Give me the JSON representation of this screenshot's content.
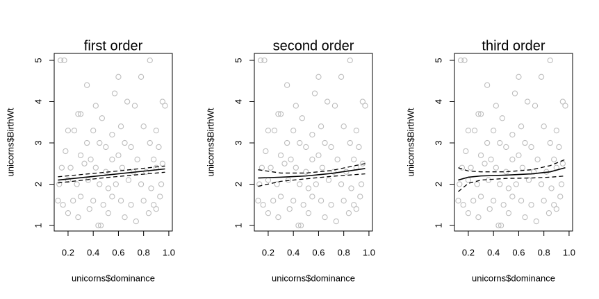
{
  "chart_data": [
    {
      "type": "scatter",
      "title": "first order",
      "x_label": "unicorns$dominance",
      "y_label": "unicorns$BirthWt",
      "xlim": [
        0.09,
        1.028
      ],
      "ylim": [
        0.866,
        5.168
      ],
      "xticks": [
        0.2,
        0.4,
        0.6,
        0.8,
        {
          "value": 1,
          "label": "1.0"
        }
      ],
      "yticks": [
        1,
        2,
        3,
        4,
        5
      ],
      "series": [
        {
          "mode": "markers",
          "color": "#bdbdbd",
          "x": [
            0.14,
            0.17,
            0.85,
            0.6,
            0.78,
            0.35,
            0.57,
            0.97,
            0.95,
            0.67,
            0.42,
            0.28,
            0.3,
            0.47,
            0.73,
            0.2,
            0.25,
            0.4,
            0.55,
            0.62,
            0.8,
            0.9,
            0.35,
            0.45,
            0.5,
            0.65,
            0.7,
            0.85,
            0.92,
            0.18,
            0.3,
            0.38,
            0.55,
            0.6,
            0.75,
            0.88,
            0.95,
            0.15,
            0.22,
            0.33,
            0.42,
            0.5,
            0.63,
            0.72,
            0.82,
            0.9,
            0.13,
            0.2,
            0.27,
            0.36,
            0.45,
            0.52,
            0.58,
            0.68,
            0.78,
            0.86,
            0.94,
            0.12,
            0.16,
            0.24,
            0.3,
            0.4,
            0.48,
            0.55,
            0.62,
            0.7,
            0.8,
            0.88,
            0.93,
            0.2,
            0.28,
            0.37,
            0.44,
            0.46,
            0.52,
            0.65,
            0.74,
            0.84,
            0.9
          ],
          "values": [
            5,
            5,
            5,
            4.6,
            4.6,
            4.4,
            4.2,
            3.9,
            4,
            4,
            3.9,
            3.7,
            3.7,
            3.6,
            3.9,
            3.3,
            3.3,
            3.3,
            3.2,
            3.4,
            3.4,
            3.3,
            3,
            3,
            2.9,
            3,
            2.9,
            3,
            2.9,
            2.8,
            2.7,
            2.6,
            2.6,
            2.7,
            2.6,
            2.6,
            2.5,
            2.4,
            2.4,
            2.5,
            2.4,
            2.3,
            2.4,
            2.3,
            2.3,
            2.4,
            2,
            2.1,
            2,
            2.1,
            2,
            1.9,
            2,
            2.1,
            2,
            1.9,
            2,
            1.6,
            1.5,
            1.6,
            1.7,
            1.6,
            1.5,
            1.7,
            1.6,
            1.5,
            1.6,
            1.5,
            1.7,
            1.3,
            1.2,
            1.4,
            1,
            1,
            1.3,
            1.2,
            1.1,
            1.3,
            1.4
          ]
        },
        {
          "mode": "line",
          "dash": false,
          "color": "#000000",
          "x": [
            0.12,
            0.5,
            0.97
          ],
          "values": [
            2.1,
            2.22,
            2.37
          ]
        },
        {
          "mode": "line",
          "dash": true,
          "color": "#000000",
          "x": [
            0.12,
            0.5,
            0.97
          ],
          "values": [
            2.03,
            2.16,
            2.29
          ]
        },
        {
          "mode": "line",
          "dash": true,
          "color": "#000000",
          "x": [
            0.12,
            0.5,
            0.97
          ],
          "values": [
            2.18,
            2.29,
            2.44
          ]
        }
      ]
    },
    {
      "type": "scatter",
      "title": "second order",
      "x_label": "unicorns$dominance",
      "y_label": "unicorns$BirthWt",
      "xlim": [
        0.09,
        1.028
      ],
      "ylim": [
        0.866,
        5.168
      ],
      "xticks": [
        0.2,
        0.4,
        0.6,
        0.8,
        {
          "value": 1,
          "label": "1.0"
        }
      ],
      "yticks": [
        1,
        2,
        3,
        4,
        5
      ],
      "series": [
        {
          "mode": "markers",
          "color": "#bdbdbd",
          "x": [
            0.14,
            0.17,
            0.85,
            0.6,
            0.78,
            0.35,
            0.57,
            0.97,
            0.95,
            0.67,
            0.42,
            0.28,
            0.3,
            0.47,
            0.73,
            0.2,
            0.25,
            0.4,
            0.55,
            0.62,
            0.8,
            0.9,
            0.35,
            0.45,
            0.5,
            0.65,
            0.7,
            0.85,
            0.92,
            0.18,
            0.3,
            0.38,
            0.55,
            0.6,
            0.75,
            0.88,
            0.95,
            0.15,
            0.22,
            0.33,
            0.42,
            0.5,
            0.63,
            0.72,
            0.82,
            0.9,
            0.13,
            0.2,
            0.27,
            0.36,
            0.45,
            0.52,
            0.58,
            0.68,
            0.78,
            0.86,
            0.94,
            0.12,
            0.16,
            0.24,
            0.3,
            0.4,
            0.48,
            0.55,
            0.62,
            0.7,
            0.8,
            0.88,
            0.93,
            0.2,
            0.28,
            0.37,
            0.44,
            0.46,
            0.52,
            0.65,
            0.74,
            0.84,
            0.9
          ],
          "values": [
            5,
            5,
            5,
            4.6,
            4.6,
            4.4,
            4.2,
            3.9,
            4,
            4,
            3.9,
            3.7,
            3.7,
            3.6,
            3.9,
            3.3,
            3.3,
            3.3,
            3.2,
            3.4,
            3.4,
            3.3,
            3,
            3,
            2.9,
            3,
            2.9,
            3,
            2.9,
            2.8,
            2.7,
            2.6,
            2.6,
            2.7,
            2.6,
            2.6,
            2.5,
            2.4,
            2.4,
            2.5,
            2.4,
            2.3,
            2.4,
            2.3,
            2.3,
            2.4,
            2,
            2.1,
            2,
            2.1,
            2,
            1.9,
            2,
            2.1,
            2,
            1.9,
            2,
            1.6,
            1.5,
            1.6,
            1.7,
            1.6,
            1.5,
            1.7,
            1.6,
            1.5,
            1.6,
            1.5,
            1.7,
            1.3,
            1.2,
            1.4,
            1,
            1,
            1.3,
            1.2,
            1.1,
            1.3,
            1.4
          ]
        },
        {
          "mode": "line",
          "dash": false,
          "color": "#000000",
          "x": [
            0.12,
            0.3,
            0.5,
            0.7,
            0.97
          ],
          "values": [
            2.15,
            2.17,
            2.2,
            2.26,
            2.38
          ]
        },
        {
          "mode": "line",
          "dash": true,
          "color": "#000000",
          "x": [
            0.12,
            0.3,
            0.5,
            0.7,
            0.97
          ],
          "values": [
            1.95,
            2.07,
            2.13,
            2.19,
            2.25
          ]
        },
        {
          "mode": "line",
          "dash": true,
          "color": "#000000",
          "x": [
            0.12,
            0.3,
            0.5,
            0.7,
            0.97
          ],
          "values": [
            2.35,
            2.27,
            2.27,
            2.33,
            2.5
          ]
        }
      ]
    },
    {
      "type": "scatter",
      "title": "third order",
      "x_label": "unicorns$dominance",
      "y_label": "unicorns$BirthWt",
      "xlim": [
        0.09,
        1.028
      ],
      "ylim": [
        0.866,
        5.168
      ],
      "xticks": [
        0.2,
        0.4,
        0.6,
        0.8,
        {
          "value": 1,
          "label": "1.0"
        }
      ],
      "yticks": [
        1,
        2,
        3,
        4,
        5
      ],
      "series": [
        {
          "mode": "markers",
          "color": "#bdbdbd",
          "x": [
            0.14,
            0.17,
            0.85,
            0.6,
            0.78,
            0.35,
            0.57,
            0.97,
            0.95,
            0.67,
            0.42,
            0.28,
            0.3,
            0.47,
            0.73,
            0.2,
            0.25,
            0.4,
            0.55,
            0.62,
            0.8,
            0.9,
            0.35,
            0.45,
            0.5,
            0.65,
            0.7,
            0.85,
            0.92,
            0.18,
            0.3,
            0.38,
            0.55,
            0.6,
            0.75,
            0.88,
            0.95,
            0.15,
            0.22,
            0.33,
            0.42,
            0.5,
            0.63,
            0.72,
            0.82,
            0.9,
            0.13,
            0.2,
            0.27,
            0.36,
            0.45,
            0.52,
            0.58,
            0.68,
            0.78,
            0.86,
            0.94,
            0.12,
            0.16,
            0.24,
            0.3,
            0.4,
            0.48,
            0.55,
            0.62,
            0.7,
            0.8,
            0.88,
            0.93,
            0.2,
            0.28,
            0.37,
            0.44,
            0.46,
            0.52,
            0.65,
            0.74,
            0.84,
            0.9
          ],
          "values": [
            5,
            5,
            5,
            4.6,
            4.6,
            4.4,
            4.2,
            3.9,
            4,
            4,
            3.9,
            3.7,
            3.7,
            3.6,
            3.9,
            3.3,
            3.3,
            3.3,
            3.2,
            3.4,
            3.4,
            3.3,
            3,
            3,
            2.9,
            3,
            2.9,
            3,
            2.9,
            2.8,
            2.7,
            2.6,
            2.6,
            2.7,
            2.6,
            2.6,
            2.5,
            2.4,
            2.4,
            2.5,
            2.4,
            2.3,
            2.4,
            2.3,
            2.3,
            2.4,
            2,
            2.1,
            2,
            2.1,
            2,
            1.9,
            2,
            2.1,
            2,
            1.9,
            2,
            1.6,
            1.5,
            1.6,
            1.7,
            1.6,
            1.5,
            1.7,
            1.6,
            1.5,
            1.6,
            1.5,
            1.7,
            1.3,
            1.2,
            1.4,
            1,
            1,
            1.3,
            1.2,
            1.1,
            1.3,
            1.4
          ]
        },
        {
          "mode": "line",
          "dash": false,
          "color": "#000000",
          "x": [
            0.12,
            0.2,
            0.3,
            0.5,
            0.7,
            0.85,
            0.97
          ],
          "values": [
            2.1,
            2.17,
            2.2,
            2.22,
            2.25,
            2.3,
            2.4
          ]
        },
        {
          "mode": "line",
          "dash": true,
          "color": "#000000",
          "x": [
            0.12,
            0.2,
            0.3,
            0.5,
            0.7,
            0.85,
            0.97
          ],
          "values": [
            1.82,
            2.02,
            2.1,
            2.14,
            2.15,
            2.17,
            2.2
          ]
        },
        {
          "mode": "line",
          "dash": true,
          "color": "#000000",
          "x": [
            0.12,
            0.2,
            0.3,
            0.5,
            0.7,
            0.85,
            0.97
          ],
          "values": [
            2.4,
            2.32,
            2.3,
            2.3,
            2.35,
            2.45,
            2.6
          ]
        }
      ]
    }
  ]
}
